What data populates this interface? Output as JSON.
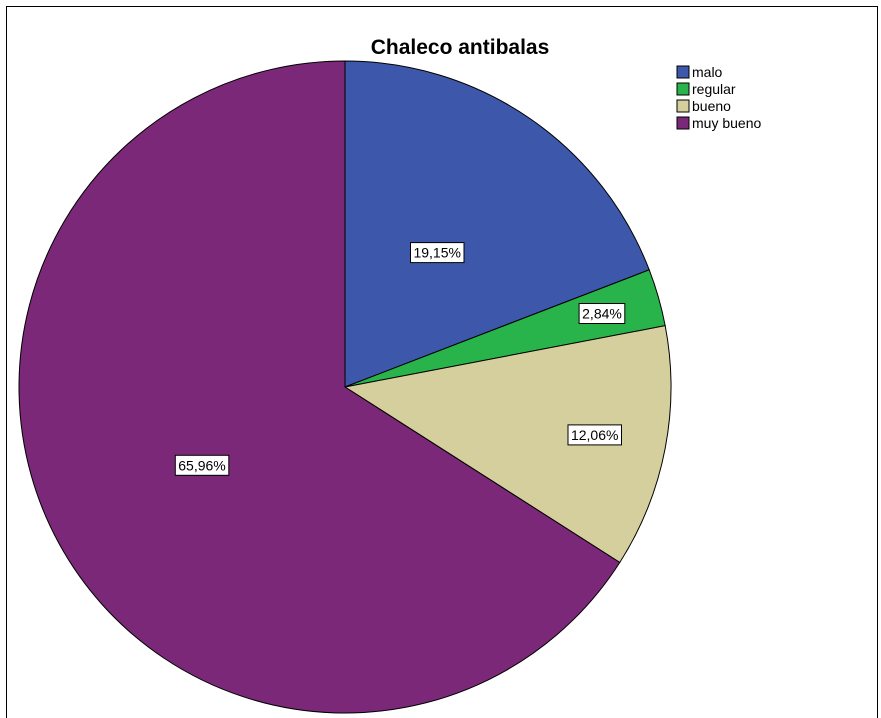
{
  "chart_data": {
    "type": "pie",
    "title": "Chaleco antibalas",
    "categories": [
      "malo",
      "regular",
      "bueno",
      "muy bueno"
    ],
    "values": [
      19.15,
      2.84,
      12.06,
      65.96
    ],
    "data_labels": [
      "19,15%",
      "2,84%",
      "12,06%",
      "65,96%"
    ],
    "colors": [
      "#3d58aa",
      "#28b34b",
      "#d4cf9c",
      "#7b2878"
    ],
    "start": "12 o'clock",
    "direction": "clockwise",
    "legend_position": "top-right"
  }
}
